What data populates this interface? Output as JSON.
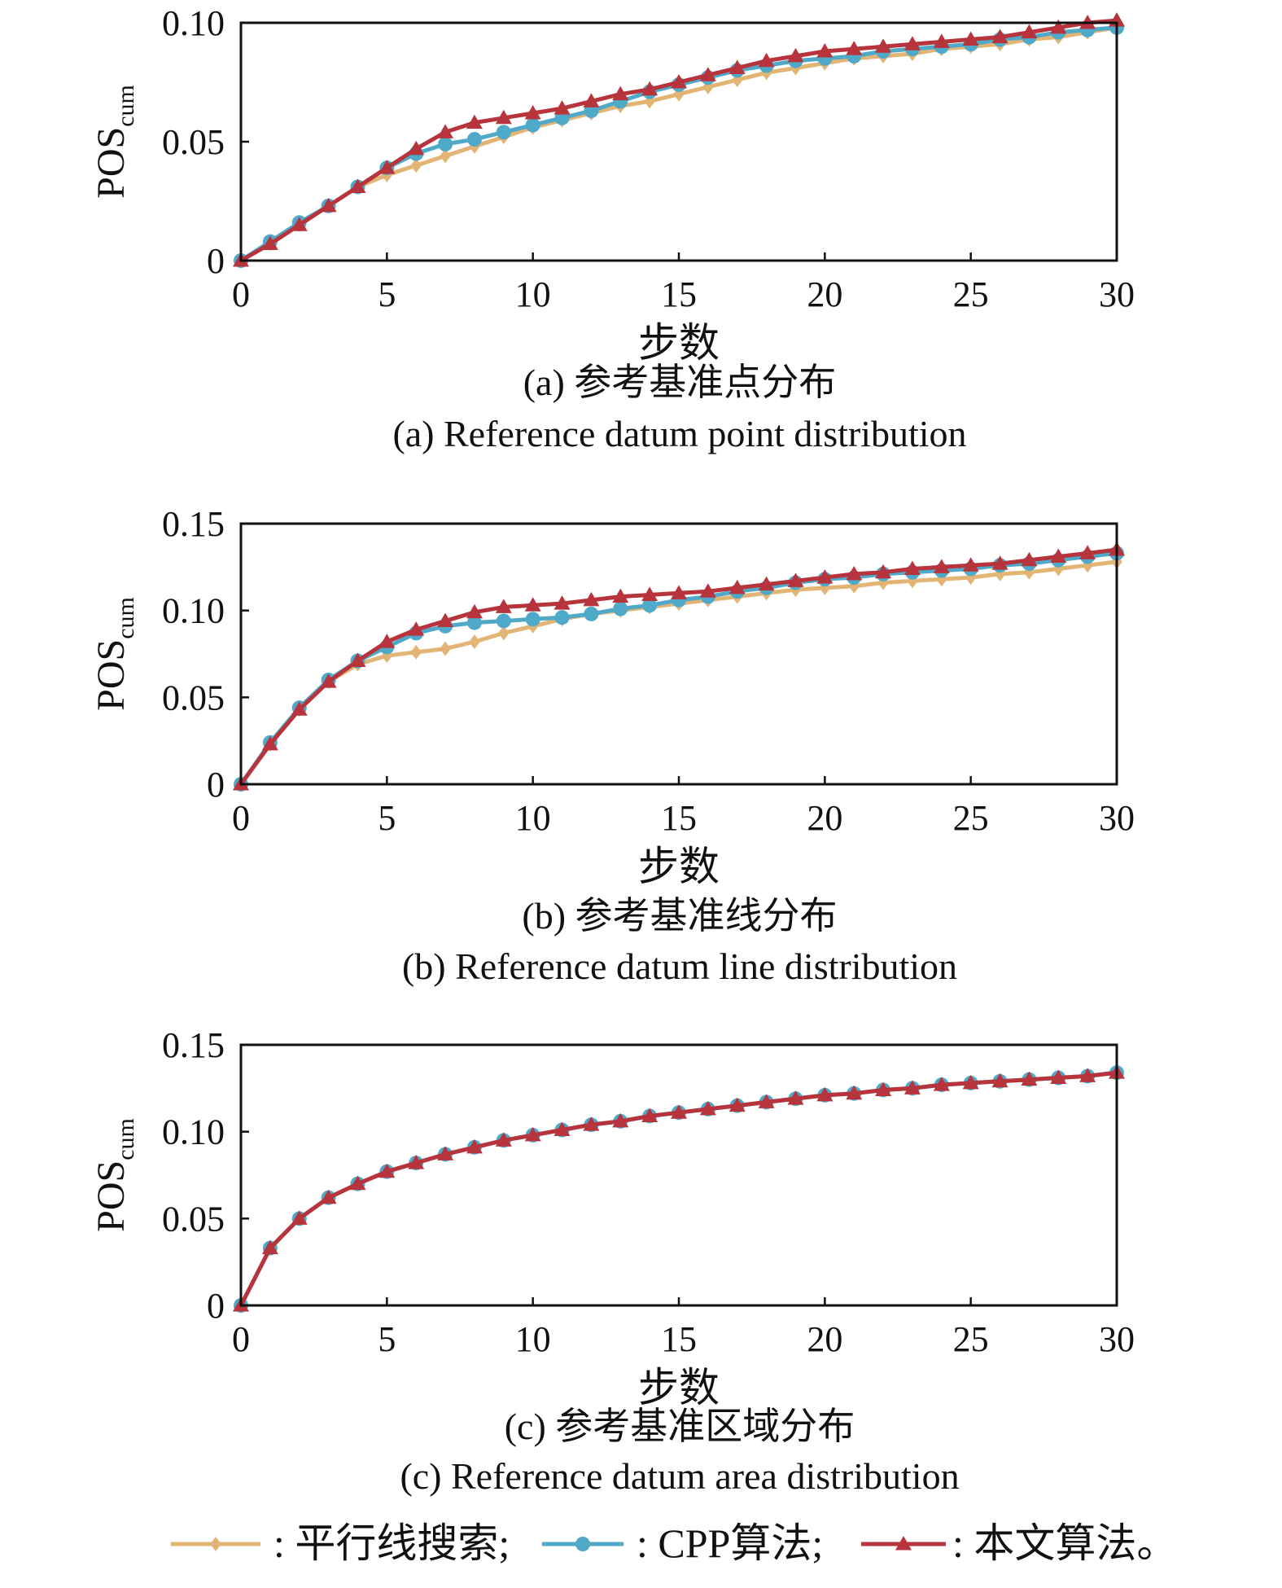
{
  "chart_data": [
    {
      "type": "line",
      "caption_cn": "(a) 参考基准点分布",
      "caption_en": "(a) Reference datum point distribution",
      "xlabel": "步数",
      "ylabel": "POS",
      "ylabel_sub": "cum",
      "xlim": [
        0,
        30
      ],
      "ylim": [
        0,
        0.1
      ],
      "xticks": [
        "0",
        "5",
        "10",
        "15",
        "20",
        "25",
        "30"
      ],
      "yticks": [
        {
          "value": 0,
          "label": "0"
        },
        {
          "value": 0.05,
          "label": "0.05"
        },
        {
          "value": 0.1,
          "label": "0.10"
        }
      ],
      "x": [
        0,
        1,
        2,
        3,
        4,
        5,
        6,
        7,
        8,
        9,
        10,
        11,
        12,
        13,
        14,
        15,
        16,
        17,
        18,
        19,
        20,
        21,
        22,
        23,
        24,
        25,
        26,
        27,
        28,
        29,
        30
      ],
      "series": [
        {
          "name": "平行线搜索",
          "values": [
            0,
            0.007,
            0.015,
            0.023,
            0.031,
            0.036,
            0.04,
            0.044,
            0.048,
            0.052,
            0.056,
            0.059,
            0.062,
            0.065,
            0.067,
            0.07,
            0.073,
            0.076,
            0.079,
            0.081,
            0.083,
            0.085,
            0.086,
            0.087,
            0.089,
            0.09,
            0.091,
            0.093,
            0.094,
            0.096,
            0.098
          ]
        },
        {
          "name": "CPP算法",
          "values": [
            0,
            0.008,
            0.016,
            0.023,
            0.031,
            0.039,
            0.045,
            0.049,
            0.051,
            0.054,
            0.057,
            0.06,
            0.063,
            0.067,
            0.071,
            0.074,
            0.077,
            0.08,
            0.082,
            0.084,
            0.085,
            0.086,
            0.088,
            0.089,
            0.09,
            0.091,
            0.093,
            0.094,
            0.096,
            0.097,
            0.098
          ]
        },
        {
          "name": "本文算法",
          "values": [
            0,
            0.007,
            0.015,
            0.023,
            0.031,
            0.039,
            0.047,
            0.054,
            0.058,
            0.06,
            0.062,
            0.064,
            0.067,
            0.07,
            0.072,
            0.075,
            0.078,
            0.081,
            0.084,
            0.086,
            0.088,
            0.089,
            0.09,
            0.091,
            0.092,
            0.093,
            0.094,
            0.096,
            0.098,
            0.1,
            0.101
          ]
        }
      ]
    },
    {
      "type": "line",
      "caption_cn": "(b) 参考基准线分布",
      "caption_en": "(b) Reference datum line distribution",
      "xlabel": "步数",
      "ylabel": "POS",
      "ylabel_sub": "cum",
      "xlim": [
        0,
        30
      ],
      "ylim": [
        0,
        0.15
      ],
      "xticks": [
        "0",
        "5",
        "10",
        "15",
        "20",
        "25",
        "30"
      ],
      "yticks": [
        {
          "value": 0,
          "label": "0"
        },
        {
          "value": 0.05,
          "label": "0.05"
        },
        {
          "value": 0.1,
          "label": "0.10"
        },
        {
          "value": 0.15,
          "label": "0.15"
        }
      ],
      "x": [
        0,
        1,
        2,
        3,
        4,
        5,
        6,
        7,
        8,
        9,
        10,
        11,
        12,
        13,
        14,
        15,
        16,
        17,
        18,
        19,
        20,
        21,
        22,
        23,
        24,
        25,
        26,
        27,
        28,
        29,
        30
      ],
      "series": [
        {
          "name": "平行线搜索",
          "values": [
            0,
            0.023,
            0.043,
            0.059,
            0.069,
            0.074,
            0.076,
            0.078,
            0.082,
            0.087,
            0.091,
            0.095,
            0.098,
            0.1,
            0.102,
            0.104,
            0.106,
            0.108,
            0.11,
            0.112,
            0.113,
            0.114,
            0.116,
            0.117,
            0.118,
            0.119,
            0.121,
            0.122,
            0.124,
            0.126,
            0.128
          ]
        },
        {
          "name": "CPP算法",
          "values": [
            0,
            0.024,
            0.044,
            0.06,
            0.071,
            0.079,
            0.087,
            0.091,
            0.093,
            0.094,
            0.095,
            0.096,
            0.098,
            0.101,
            0.103,
            0.106,
            0.108,
            0.111,
            0.113,
            0.116,
            0.118,
            0.119,
            0.121,
            0.122,
            0.123,
            0.124,
            0.126,
            0.127,
            0.129,
            0.131,
            0.133
          ]
        },
        {
          "name": "本文算法",
          "values": [
            0,
            0.023,
            0.043,
            0.059,
            0.071,
            0.082,
            0.089,
            0.094,
            0.099,
            0.102,
            0.103,
            0.104,
            0.106,
            0.108,
            0.109,
            0.11,
            0.111,
            0.113,
            0.115,
            0.117,
            0.119,
            0.121,
            0.122,
            0.124,
            0.125,
            0.126,
            0.127,
            0.129,
            0.131,
            0.133,
            0.135
          ]
        }
      ]
    },
    {
      "type": "line",
      "caption_cn": "(c) 参考基准区域分布",
      "caption_en": "(c) Reference datum area distribution",
      "xlabel": "步数",
      "ylabel": "POS",
      "ylabel_sub": "cum",
      "xlim": [
        0,
        30
      ],
      "ylim": [
        0,
        0.15
      ],
      "xticks": [
        "0",
        "5",
        "10",
        "15",
        "20",
        "25",
        "30"
      ],
      "yticks": [
        {
          "value": 0,
          "label": "0"
        },
        {
          "value": 0.05,
          "label": "0.05"
        },
        {
          "value": 0.1,
          "label": "0.10"
        },
        {
          "value": 0.15,
          "label": "0.15"
        }
      ],
      "x": [
        0,
        1,
        2,
        3,
        4,
        5,
        6,
        7,
        8,
        9,
        10,
        11,
        12,
        13,
        14,
        15,
        16,
        17,
        18,
        19,
        20,
        21,
        22,
        23,
        24,
        25,
        26,
        27,
        28,
        29,
        30
      ],
      "series": [
        {
          "name": "平行线搜索",
          "values": [
            0,
            0.033,
            0.05,
            0.062,
            0.07,
            0.077,
            0.082,
            0.087,
            0.091,
            0.095,
            0.098,
            0.101,
            0.104,
            0.106,
            0.109,
            0.111,
            0.113,
            0.115,
            0.117,
            0.119,
            0.121,
            0.122,
            0.124,
            0.125,
            0.127,
            0.128,
            0.129,
            0.13,
            0.131,
            0.132,
            0.134
          ]
        },
        {
          "name": "CPP算法",
          "values": [
            0,
            0.033,
            0.05,
            0.062,
            0.07,
            0.077,
            0.082,
            0.087,
            0.091,
            0.095,
            0.098,
            0.101,
            0.104,
            0.106,
            0.109,
            0.111,
            0.113,
            0.115,
            0.117,
            0.119,
            0.121,
            0.122,
            0.124,
            0.125,
            0.127,
            0.128,
            0.129,
            0.13,
            0.131,
            0.132,
            0.134
          ]
        },
        {
          "name": "本文算法",
          "values": [
            0,
            0.033,
            0.05,
            0.062,
            0.07,
            0.077,
            0.082,
            0.087,
            0.091,
            0.095,
            0.098,
            0.101,
            0.104,
            0.106,
            0.109,
            0.111,
            0.113,
            0.115,
            0.117,
            0.119,
            0.121,
            0.122,
            0.124,
            0.125,
            0.127,
            0.128,
            0.129,
            0.13,
            0.131,
            0.132,
            0.134
          ]
        }
      ]
    }
  ],
  "legend": {
    "items": [
      {
        "label": ": 平行线搜索;",
        "marker": "diamond"
      },
      {
        "label": ": CPP算法;",
        "marker": "circle"
      },
      {
        "label": ": 本文算法。",
        "marker": "triangle"
      }
    ]
  },
  "colors": {
    "parallel": "#E3B574",
    "cpp": "#4FA9C9",
    "ours": "#B8343C",
    "axis": "#111111"
  }
}
